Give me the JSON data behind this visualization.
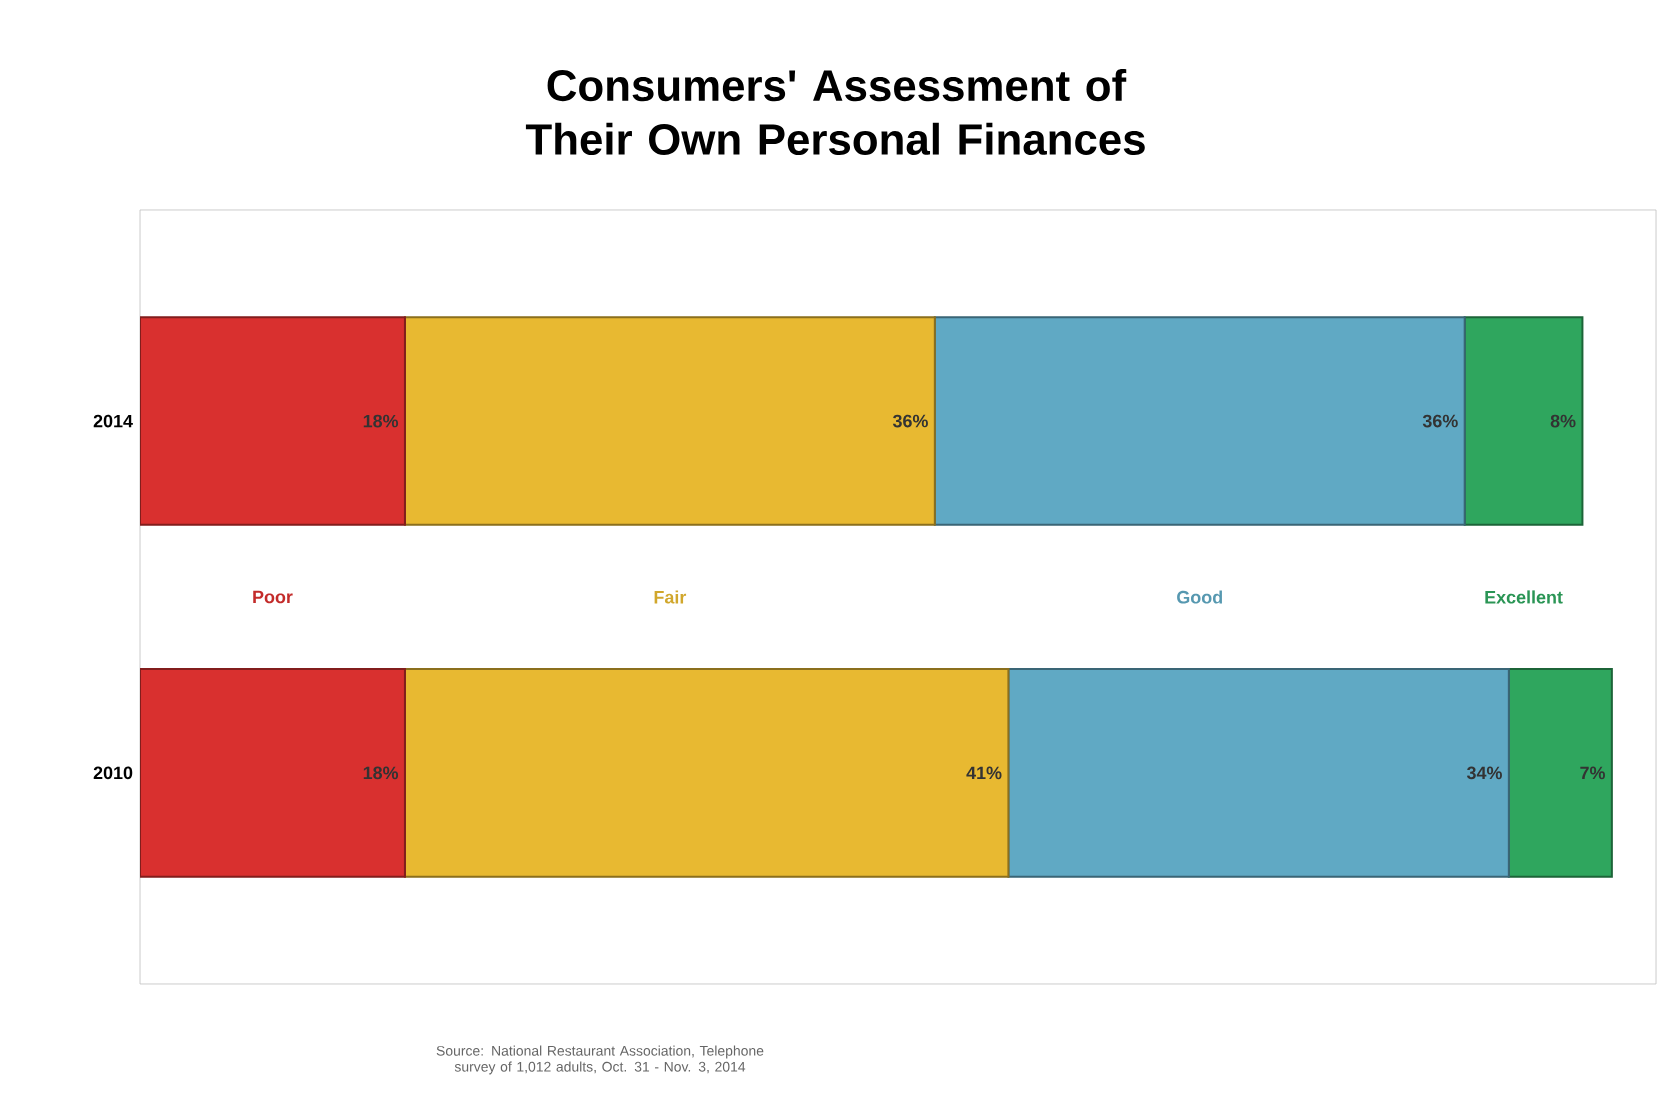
{
  "chart_data": {
    "type": "bar",
    "orientation": "horizontal",
    "stacked": true,
    "title": "Consumers' Assessment of Their Own Personal Finances",
    "categories": [
      "2014",
      "2010"
    ],
    "series": [
      {
        "name": "Poor",
        "color": "#d9302f",
        "values": [
          18,
          18
        ],
        "value_labels": [
          "18%",
          "18%"
        ]
      },
      {
        "name": "Fair",
        "color": "#e8b931",
        "values": [
          36,
          41
        ],
        "value_labels": [
          "36%",
          "41%"
        ]
      },
      {
        "name": "Good",
        "color": "#60a9c4",
        "values": [
          36,
          34
        ],
        "value_labels": [
          "36%",
          "34%"
        ]
      },
      {
        "name": "Excellent",
        "color": "#2fa65e",
        "values": [
          8,
          7
        ],
        "value_labels": [
          "8%",
          "7%"
        ]
      }
    ],
    "xlim": [
      0,
      103
    ],
    "tick_labels": "y",
    "grid": false,
    "annotations": [
      "Source: National Restaurant Association, Telephone survey of 1,012 adults, Oct. 31 - Nov. 3, 2014"
    ]
  }
}
